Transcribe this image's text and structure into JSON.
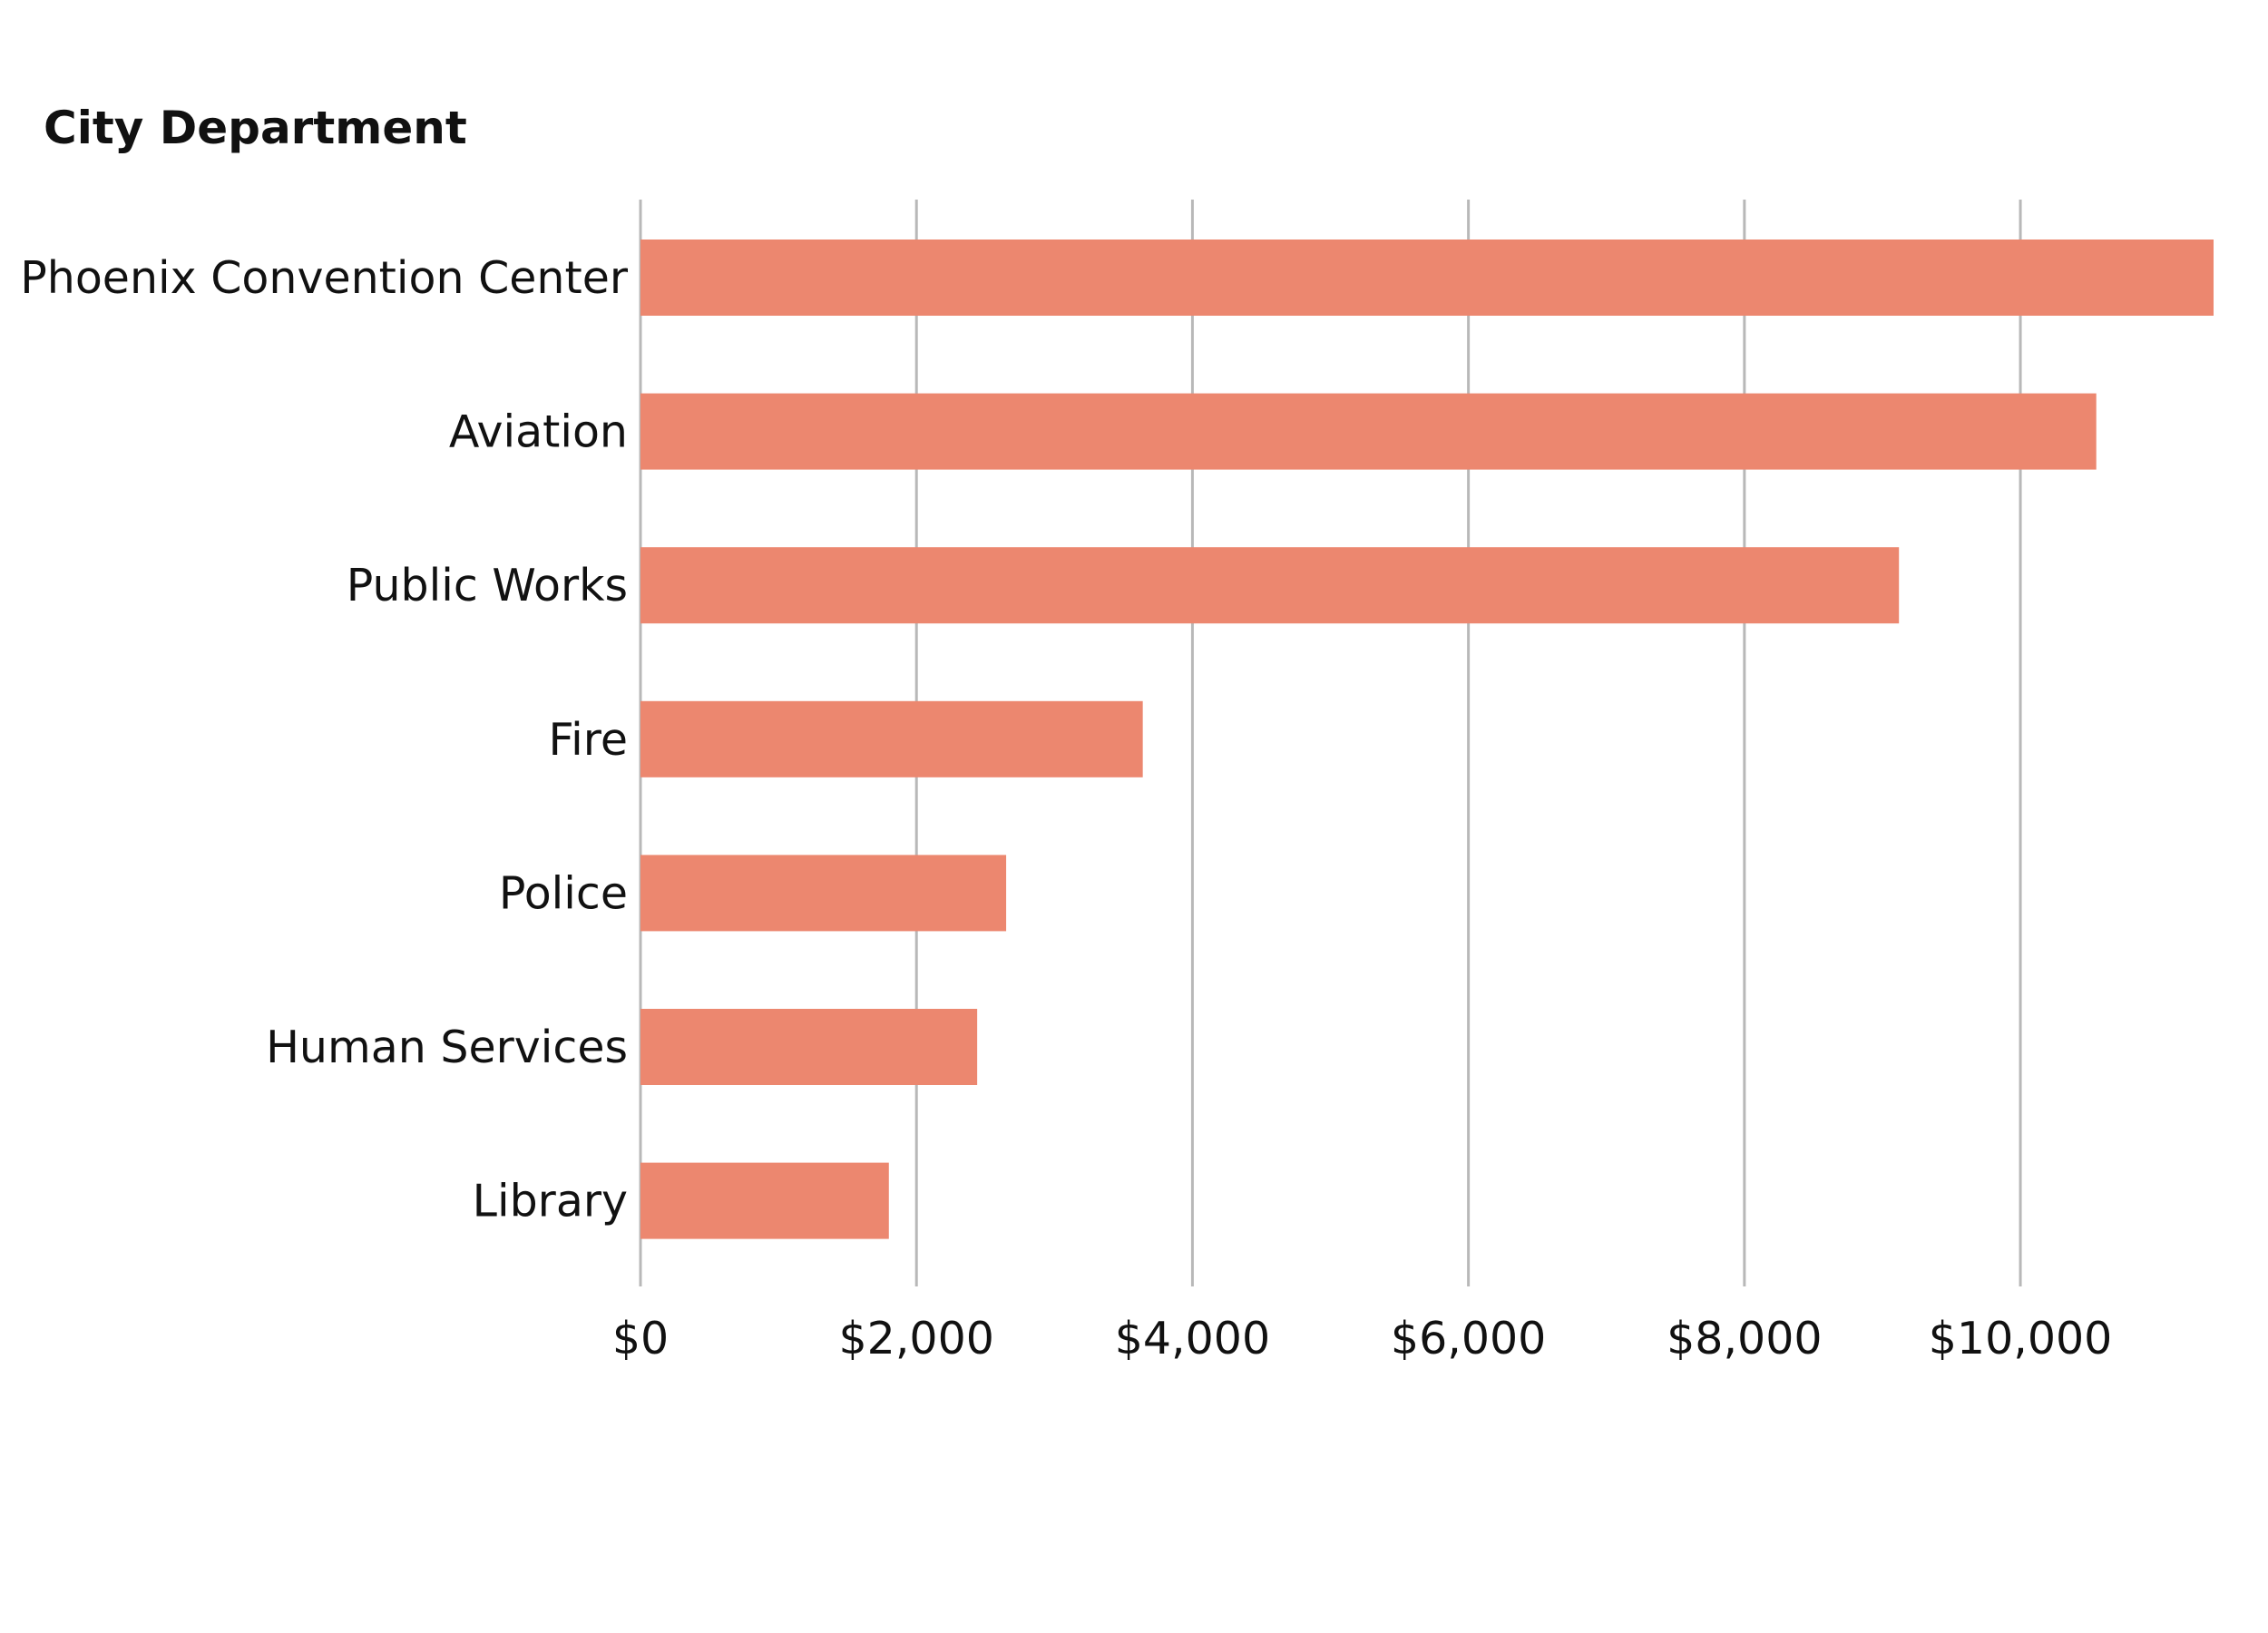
{
  "chart_data": {
    "type": "bar",
    "orientation": "horizontal",
    "title": "",
    "ylabel": "City Department",
    "xlabel": "",
    "categories": [
      "Phoenix Convention Center",
      "Aviation",
      "Public Works",
      "Fire",
      "Police",
      "Human Services",
      "Library"
    ],
    "values": [
      11400,
      10550,
      9120,
      3640,
      2650,
      2440,
      1800
    ],
    "xlim": [
      0,
      11400
    ],
    "xticks": [
      0,
      2000,
      4000,
      6000,
      8000,
      10000
    ],
    "xtick_labels": [
      "$0",
      "$2,000",
      "$4,000",
      "$6,000",
      "$8,000",
      "$10,000"
    ],
    "bar_color": "#EC876F",
    "grid": "vertical",
    "legend": "none"
  }
}
